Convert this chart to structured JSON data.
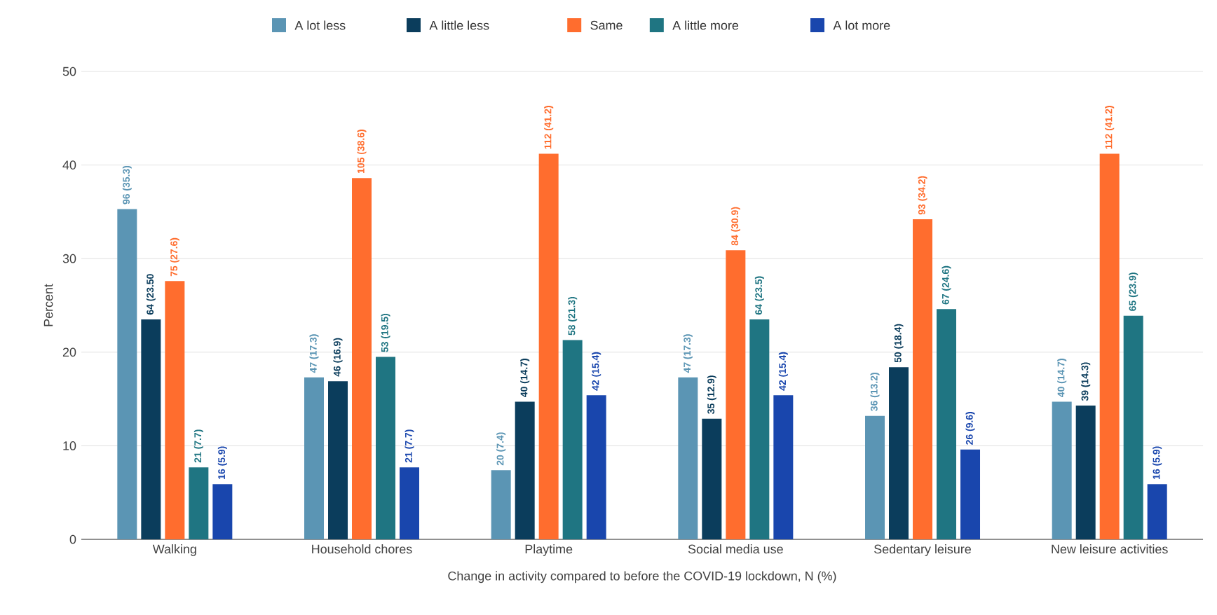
{
  "chart_data": {
    "type": "bar",
    "xlabel": "Change in activity compared to before the COVID-19 lockdown, N (%)",
    "ylabel": "Percent",
    "categories": [
      "Walking",
      "Household chores",
      "Playtime",
      "Social media use",
      "Sedentary leisure",
      "New leisure activities"
    ],
    "series": [
      {
        "name": "A lot less",
        "color": "#5b95b4",
        "values": [
          35.3,
          17.3,
          7.4,
          17.3,
          13.2,
          14.7
        ],
        "value_labels": [
          "96 (35.3)",
          "47 (17.3)",
          "20 (7.4)",
          "47 (17.3)",
          "36 (13.2)",
          "40 (14.7)"
        ]
      },
      {
        "name": "A little less",
        "color": "#0b3d5c",
        "values": [
          23.5,
          16.9,
          14.7,
          12.9,
          18.4,
          14.3
        ],
        "value_labels": [
          "64 (23.50",
          "46 (16.9)",
          "40 (14.7)",
          "35 (12.9)",
          "50 (18.4)",
          "39 (14.3)"
        ]
      },
      {
        "name": "Same",
        "color": "#ff6d2e",
        "values": [
          27.6,
          38.6,
          41.2,
          30.9,
          34.2,
          41.2
        ],
        "value_labels": [
          "75 (27.6)",
          "105 (38.6)",
          "112 (41.2)",
          "84 (30.9)",
          "93 (34.2)",
          "112 (41.2)"
        ]
      },
      {
        "name": "A little more",
        "color": "#1f7582",
        "values": [
          7.7,
          19.5,
          21.3,
          23.5,
          24.6,
          23.9
        ],
        "value_labels": [
          "21 (7.7)",
          "53 (19.5)",
          "58 (21.3)",
          "64 (23.5)",
          "67 (24.6)",
          "65 (23.9)"
        ]
      },
      {
        "name": "A lot more",
        "color": "#1946ad",
        "values": [
          5.9,
          7.7,
          15.4,
          15.4,
          9.6,
          5.9
        ],
        "value_labels": [
          "16 (5.9)",
          "21 (7.7)",
          "42 (15.4)",
          "42 (15.4)",
          "26 (9.6)",
          "16 (5.9)"
        ]
      }
    ],
    "ylim": [
      0,
      50
    ],
    "yticks": [
      0,
      10,
      20,
      30,
      40,
      50
    ],
    "grid": "y",
    "legend": "top"
  }
}
